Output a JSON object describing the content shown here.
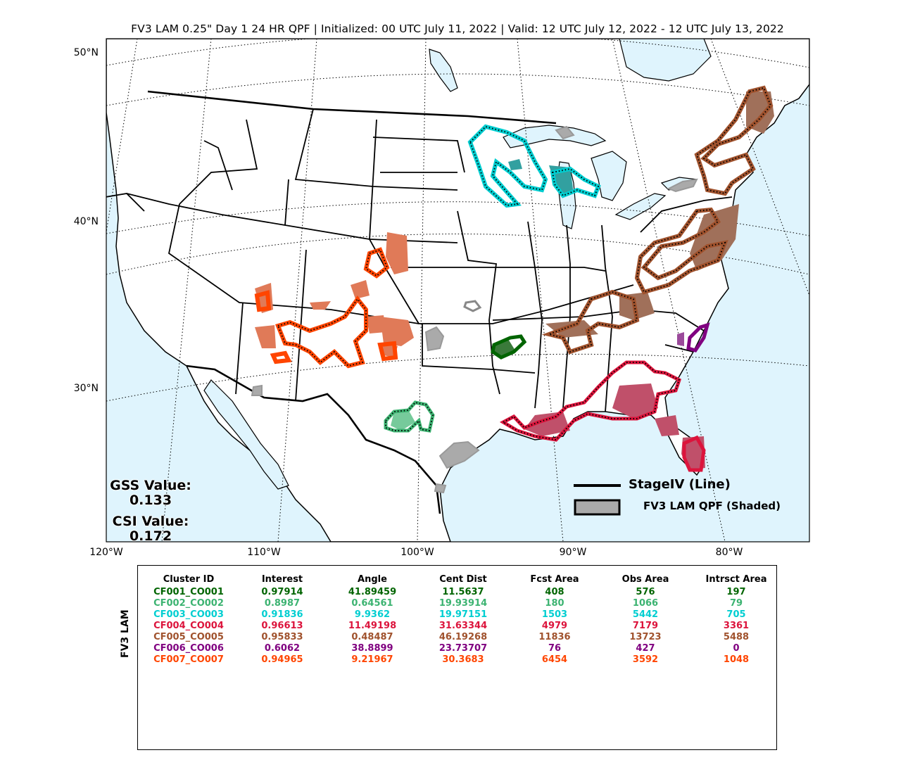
{
  "title": "FV3 LAM 0.25\" Day 1 24 HR QPF | Initialized: 00 UTC July 11, 2022 | Valid: 12 UTC July 12, 2022 - 12 UTC July 13, 2022",
  "lat_labels": [
    "50°N",
    "40°N",
    "30°N"
  ],
  "lon_labels": [
    "120°W",
    "110°W",
    "100°W",
    "90°W",
    "80°W"
  ],
  "gss": {
    "label": "GSS Value:",
    "value": "0.133"
  },
  "csi": {
    "label": "CSI Value:",
    "value": "0.172"
  },
  "legend": {
    "line_label": "StageIV (Line)",
    "shaded_label": "FV3 LAM QPF (Shaded)"
  },
  "side_label": "FV3 LAM",
  "table": {
    "headers": [
      "Cluster ID",
      "Interest",
      "Angle",
      "Cent Dist",
      "Fcst Area",
      "Obs Area",
      "Intrsct Area"
    ],
    "rows": [
      {
        "color": "#006400",
        "cells": [
          "CF001_CO001",
          "0.97914",
          "41.89459",
          "11.5637",
          "408",
          "576",
          "197"
        ]
      },
      {
        "color": "#3cb371",
        "cells": [
          "CF002_CO002",
          "0.8987",
          "0.64561",
          "19.93914",
          "180",
          "1066",
          "79"
        ]
      },
      {
        "color": "#00ced1",
        "cells": [
          "CF003_CO003",
          "0.91836",
          "9.9362",
          "19.97151",
          "1503",
          "5442",
          "705"
        ]
      },
      {
        "color": "#dc143c",
        "cells": [
          "CF004_CO004",
          "0.96613",
          "11.49198",
          "31.63344",
          "4979",
          "7179",
          "3361"
        ]
      },
      {
        "color": "#a0522d",
        "cells": [
          "CF005_CO005",
          "0.95833",
          "0.48487",
          "46.19268",
          "11836",
          "13723",
          "5488"
        ]
      },
      {
        "color": "#800080",
        "cells": [
          "CF006_CO006",
          "0.6062",
          "38.8899",
          "23.73707",
          "76",
          "427",
          "0"
        ]
      },
      {
        "color": "#ff4500",
        "cells": [
          "CF007_CO007",
          "0.94965",
          "9.21967",
          "30.3683",
          "6454",
          "3592",
          "1048"
        ]
      }
    ]
  },
  "colors": {
    "water": "#dff4fd",
    "land": "#ffffff",
    "unmatched": "#aaaaaa",
    "co001": "#006400",
    "co002": "#3cb371",
    "co003": "#00ced1",
    "co004": "#dc143c",
    "co005": "#a0522d",
    "co006": "#800080",
    "co007": "#ff4500"
  }
}
